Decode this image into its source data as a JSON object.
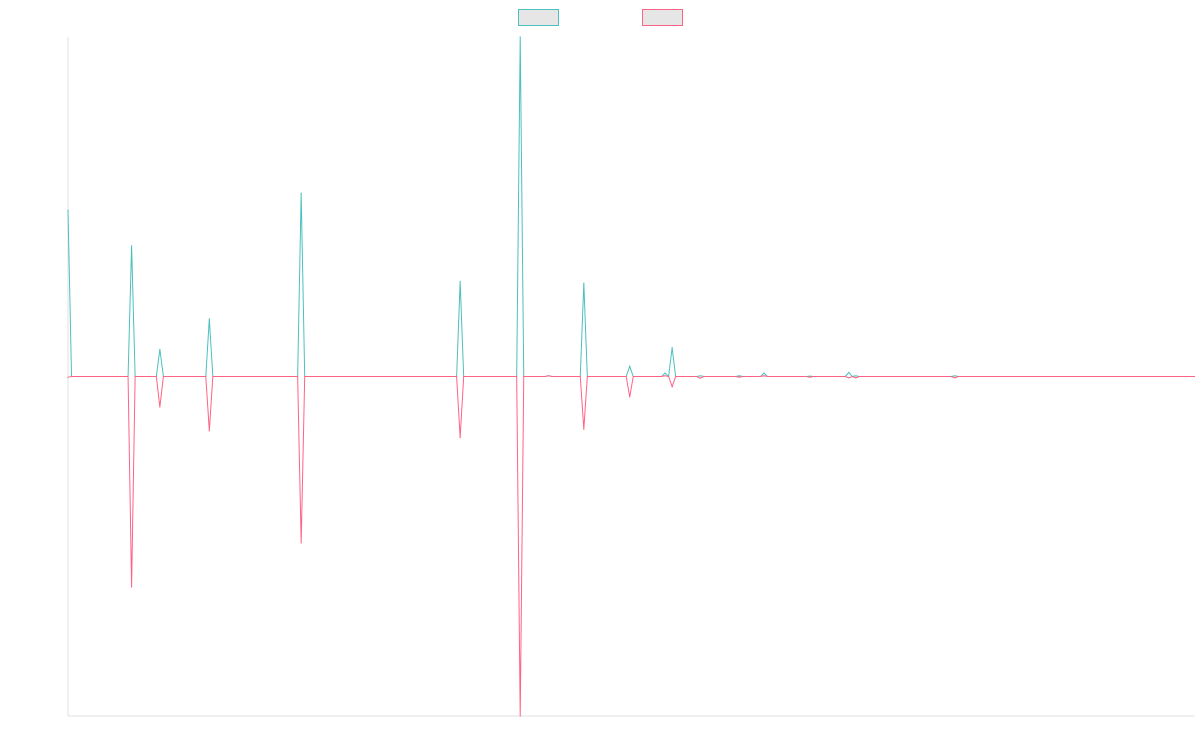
{
  "chart_data": {
    "type": "line",
    "title": "",
    "xlabel": "",
    "ylabel": "",
    "grid": false,
    "legend_position": "top-center",
    "ylim": [
      -1.0,
      1.0
    ],
    "x_count": 320,
    "series": [
      {
        "name": "",
        "color": "#4bc0c0",
        "fill": "#e6e6e6",
        "points": [
          {
            "x": 0,
            "y": 0.49
          },
          {
            "x": 1,
            "y": 0
          },
          {
            "x": 17,
            "y": 0
          },
          {
            "x": 18,
            "y": 0.385
          },
          {
            "x": 19,
            "y": 0
          },
          {
            "x": 25,
            "y": 0
          },
          {
            "x": 26,
            "y": 0.08
          },
          {
            "x": 27,
            "y": 0
          },
          {
            "x": 39,
            "y": 0
          },
          {
            "x": 40,
            "y": 0.17
          },
          {
            "x": 41,
            "y": 0
          },
          {
            "x": 65,
            "y": 0
          },
          {
            "x": 66,
            "y": 0.54
          },
          {
            "x": 67,
            "y": 0
          },
          {
            "x": 110,
            "y": 0
          },
          {
            "x": 111,
            "y": 0.28
          },
          {
            "x": 112,
            "y": 0
          },
          {
            "x": 127,
            "y": 0
          },
          {
            "x": 128,
            "y": 1.0
          },
          {
            "x": 129,
            "y": 0
          },
          {
            "x": 135,
            "y": 0
          },
          {
            "x": 136,
            "y": 0.002
          },
          {
            "x": 137,
            "y": 0
          },
          {
            "x": 145,
            "y": 0
          },
          {
            "x": 146,
            "y": 0.275
          },
          {
            "x": 147,
            "y": 0
          },
          {
            "x": 158,
            "y": 0
          },
          {
            "x": 159,
            "y": 0.03
          },
          {
            "x": 160,
            "y": 0
          },
          {
            "x": 168,
            "y": 0
          },
          {
            "x": 169,
            "y": 0.01
          },
          {
            "x": 170,
            "y": 0
          },
          {
            "x": 171,
            "y": 0.085
          },
          {
            "x": 172,
            "y": 0
          },
          {
            "x": 178,
            "y": 0
          },
          {
            "x": 179,
            "y": 0.002
          },
          {
            "x": 180,
            "y": 0
          },
          {
            "x": 189,
            "y": 0
          },
          {
            "x": 190,
            "y": 0.002
          },
          {
            "x": 191,
            "y": 0
          },
          {
            "x": 196,
            "y": 0
          },
          {
            "x": 197,
            "y": 0.01
          },
          {
            "x": 198,
            "y": 0
          },
          {
            "x": 209,
            "y": 0
          },
          {
            "x": 210,
            "y": 0.001
          },
          {
            "x": 211,
            "y": 0
          },
          {
            "x": 220,
            "y": 0
          },
          {
            "x": 221,
            "y": 0.012
          },
          {
            "x": 222,
            "y": 0
          },
          {
            "x": 223,
            "y": 0.002
          },
          {
            "x": 224,
            "y": 0
          },
          {
            "x": 250,
            "y": 0
          },
          {
            "x": 251,
            "y": 0.002
          },
          {
            "x": 252,
            "y": 0
          },
          {
            "x": 319,
            "y": 0
          }
        ]
      },
      {
        "name": "",
        "color": "#ff6384",
        "fill": "#e6e6e6",
        "points": [
          {
            "x": 0,
            "y": -0.002
          },
          {
            "x": 1,
            "y": 0
          },
          {
            "x": 17,
            "y": 0
          },
          {
            "x": 18,
            "y": -0.62
          },
          {
            "x": 19,
            "y": 0
          },
          {
            "x": 25,
            "y": 0
          },
          {
            "x": 26,
            "y": -0.09
          },
          {
            "x": 27,
            "y": 0
          },
          {
            "x": 39,
            "y": 0
          },
          {
            "x": 40,
            "y": -0.16
          },
          {
            "x": 41,
            "y": 0
          },
          {
            "x": 65,
            "y": 0
          },
          {
            "x": 66,
            "y": -0.49
          },
          {
            "x": 67,
            "y": 0
          },
          {
            "x": 110,
            "y": 0
          },
          {
            "x": 111,
            "y": -0.18
          },
          {
            "x": 112,
            "y": 0
          },
          {
            "x": 127,
            "y": 0
          },
          {
            "x": 128,
            "y": -1.0
          },
          {
            "x": 129,
            "y": 0
          },
          {
            "x": 135,
            "y": 0
          },
          {
            "x": 136,
            "y": 0.002
          },
          {
            "x": 137,
            "y": 0
          },
          {
            "x": 145,
            "y": 0
          },
          {
            "x": 146,
            "y": -0.155
          },
          {
            "x": 147,
            "y": 0
          },
          {
            "x": 158,
            "y": 0
          },
          {
            "x": 159,
            "y": -0.06
          },
          {
            "x": 160,
            "y": 0
          },
          {
            "x": 168,
            "y": 0
          },
          {
            "x": 169,
            "y": 0.002
          },
          {
            "x": 170,
            "y": 0
          },
          {
            "x": 171,
            "y": -0.03
          },
          {
            "x": 172,
            "y": 0
          },
          {
            "x": 178,
            "y": 0
          },
          {
            "x": 179,
            "y": -0.005
          },
          {
            "x": 180,
            "y": 0
          },
          {
            "x": 189,
            "y": 0
          },
          {
            "x": 190,
            "y": -0.002
          },
          {
            "x": 191,
            "y": 0
          },
          {
            "x": 196,
            "y": 0
          },
          {
            "x": 197,
            "y": 0.002
          },
          {
            "x": 198,
            "y": 0
          },
          {
            "x": 209,
            "y": 0
          },
          {
            "x": 210,
            "y": -0.002
          },
          {
            "x": 211,
            "y": 0
          },
          {
            "x": 220,
            "y": 0
          },
          {
            "x": 221,
            "y": -0.004
          },
          {
            "x": 222,
            "y": 0
          },
          {
            "x": 223,
            "y": -0.004
          },
          {
            "x": 224,
            "y": 0
          },
          {
            "x": 250,
            "y": 0
          },
          {
            "x": 251,
            "y": -0.004
          },
          {
            "x": 252,
            "y": 0
          },
          {
            "x": 319,
            "y": 0
          }
        ]
      }
    ]
  }
}
